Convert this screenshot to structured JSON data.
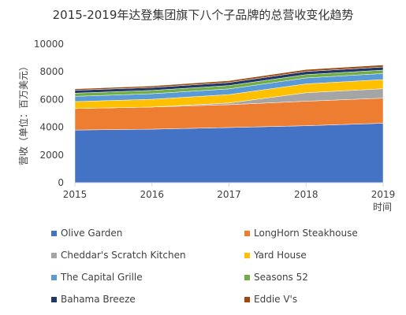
{
  "chart_data": {
    "type": "area",
    "stacked": true,
    "title": "2015-2019年达登集团旗下八个子品牌的总营收变化趋势",
    "xlabel": "时间",
    "ylabel": "营收（单位：百万美元）",
    "x": [
      "2015",
      "2016",
      "2017",
      "2018",
      "2019"
    ],
    "ylim": [
      0,
      10000
    ],
    "yticks": [
      0,
      2000,
      4000,
      6000,
      8000,
      10000
    ],
    "grid": false,
    "legend_position": "bottom",
    "series": [
      {
        "name": "Olive Garden",
        "color": "#4472c4",
        "values": [
          3800,
          3860,
          3980,
          4110,
          4290
        ]
      },
      {
        "name": "LongHorn Steakhouse",
        "color": "#ed7d31",
        "values": [
          1550,
          1600,
          1650,
          1770,
          1810
        ]
      },
      {
        "name": "Cheddar's Scratch Kitchen",
        "color": "#a5a5a5",
        "values": [
          0,
          0,
          120,
          610,
          680
        ]
      },
      {
        "name": "Yard House",
        "color": "#ffc000",
        "values": [
          500,
          560,
          610,
          640,
          660
        ]
      },
      {
        "name": "The Capital Grille",
        "color": "#5b9bd5",
        "values": [
          380,
          400,
          410,
          430,
          440
        ]
      },
      {
        "name": "Seasons 52",
        "color": "#70ad47",
        "values": [
          230,
          240,
          240,
          240,
          245
        ]
      },
      {
        "name": "Bahama Breeze",
        "color": "#1f3864",
        "values": [
          210,
          210,
          220,
          225,
          225
        ]
      },
      {
        "name": "Eddie V's",
        "color": "#9e480e",
        "values": [
          100,
          110,
          130,
          140,
          145
        ]
      }
    ]
  }
}
